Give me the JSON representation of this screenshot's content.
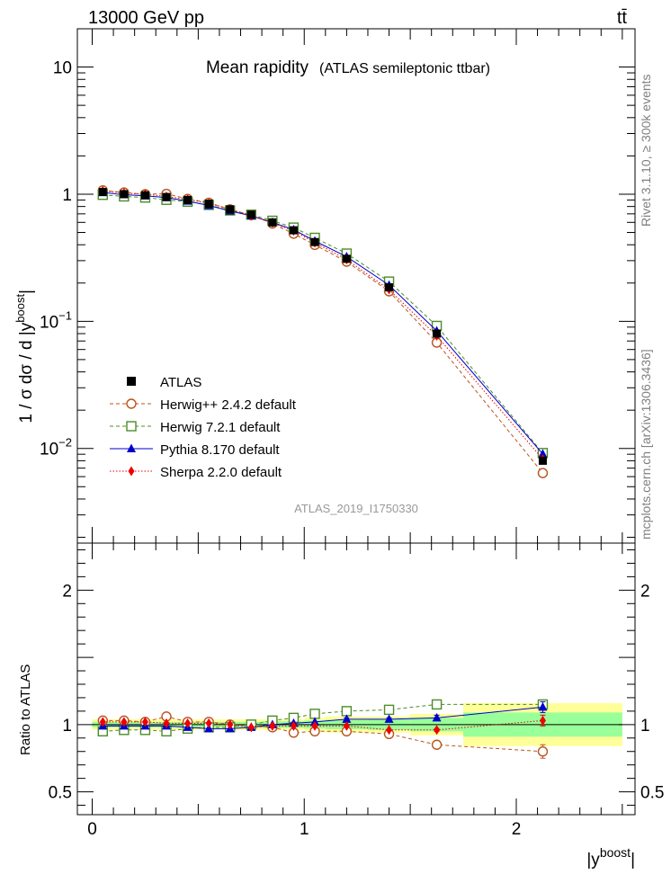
{
  "header": {
    "energy_label": "13000 GeV pp",
    "process_label": "tt̄",
    "title_main": "Mean rapidity",
    "title_sub": "(ATLAS semileptonic ttbar)",
    "analysis_id": "ATLAS_2019_I1750330",
    "side_rivet": "Rivet 3.1.10, ≥ 300k events",
    "side_mcplots": "mcplots.cern.ch [arXiv:1306.3436]"
  },
  "axes": {
    "ylabel_main": "1 / σ dσ / d |y",
    "ylabel_main_sup": "boost",
    "ylabel_main_tail": "|",
    "ylabel_ratio": "Ratio to ATLAS",
    "xlabel": "|y",
    "xlabel_sup": "boost",
    "xlabel_tail": "|",
    "main_ticks": [
      {
        "value": 10,
        "text": "10"
      },
      {
        "value": 1,
        "text": "1"
      },
      {
        "value": 0.1,
        "text": "10",
        "exp": "−1"
      },
      {
        "value": 0.01,
        "text": "10",
        "exp": "−2"
      }
    ],
    "ratio_ticks": [
      {
        "value": 2,
        "text": "2"
      },
      {
        "value": 1,
        "text": "1"
      },
      {
        "value": 0.5,
        "text": "0.5"
      }
    ],
    "x_ticks": [
      {
        "value": 0,
        "text": "0"
      },
      {
        "value": 1,
        "text": "1"
      },
      {
        "value": 2,
        "text": "2"
      }
    ]
  },
  "legend": [
    {
      "key": "atlas",
      "label": "ATLAS"
    },
    {
      "key": "herwigpp",
      "label": "Herwig++ 2.4.2 default"
    },
    {
      "key": "herwig7",
      "label": "Herwig 7.2.1 default"
    },
    {
      "key": "pythia",
      "label": "Pythia 8.170 default"
    },
    {
      "key": "sherpa",
      "label": "Sherpa 2.2.0 default"
    }
  ],
  "colors": {
    "atlas": "#000000",
    "herwigpp": "#b8541d",
    "herwig7": "#4c8c28",
    "pythia": "#0000cc",
    "sherpa": "#ee0000",
    "band_outer": "#ffff99",
    "band_inner": "#99ff99"
  },
  "chart_data": {
    "type": "scatter",
    "xlim": [
      -0.07,
      2.56
    ],
    "ylim_main": [
      0.0018,
      20
    ],
    "ylim_ratio": [
      0.33,
      2.35
    ],
    "bins": [
      [
        0.0,
        0.1
      ],
      [
        0.1,
        0.2
      ],
      [
        0.2,
        0.3
      ],
      [
        0.3,
        0.4
      ],
      [
        0.4,
        0.5
      ],
      [
        0.5,
        0.6
      ],
      [
        0.6,
        0.7
      ],
      [
        0.7,
        0.8
      ],
      [
        0.8,
        0.9
      ],
      [
        0.9,
        1.0
      ],
      [
        1.0,
        1.1
      ],
      [
        1.1,
        1.3
      ],
      [
        1.3,
        1.5
      ],
      [
        1.5,
        1.75
      ],
      [
        1.75,
        2.5
      ]
    ],
    "x": [
      0.05,
      0.15,
      0.25,
      0.35,
      0.45,
      0.55,
      0.65,
      0.75,
      0.85,
      0.95,
      1.05,
      1.2,
      1.4,
      1.625,
      2.125
    ],
    "atlas": [
      1.04,
      1.0,
      0.98,
      0.95,
      0.9,
      0.84,
      0.76,
      0.69,
      0.6,
      0.52,
      0.42,
      0.31,
      0.185,
      0.08,
      0.008
    ],
    "band_outer": [
      0.04,
      0.04,
      0.04,
      0.04,
      0.04,
      0.04,
      0.04,
      0.04,
      0.04,
      0.04,
      0.05,
      0.06,
      0.06,
      0.08,
      0.16
    ],
    "band_inner": [
      0.02,
      0.02,
      0.02,
      0.02,
      0.02,
      0.02,
      0.02,
      0.02,
      0.025,
      0.025,
      0.03,
      0.035,
      0.04,
      0.05,
      0.09
    ],
    "series": [
      {
        "key": "herwigpp",
        "name": "Herwig++ 2.4.2 default",
        "marker": "open-circle",
        "line": "dashed",
        "ratio": [
          1.03,
          1.03,
          1.02,
          1.06,
          1.02,
          1.02,
          1.0,
          0.99,
          0.98,
          0.94,
          0.95,
          0.95,
          0.93,
          0.85,
          0.8
        ],
        "ratio_err": [
          0,
          0,
          0,
          0,
          0,
          0,
          0,
          0,
          0,
          0,
          0,
          0,
          0,
          0.02,
          0.05
        ]
      },
      {
        "key": "herwig7",
        "name": "Herwig 7.2.1 default",
        "marker": "open-square",
        "line": "dashed",
        "ratio": [
          0.95,
          0.96,
          0.96,
          0.95,
          0.97,
          0.98,
          0.98,
          1.0,
          1.03,
          1.05,
          1.08,
          1.1,
          1.11,
          1.15,
          1.15
        ],
        "ratio_err": [
          0,
          0,
          0,
          0,
          0,
          0,
          0,
          0,
          0,
          0,
          0,
          0,
          0,
          0.01,
          0.03
        ]
      },
      {
        "key": "pythia",
        "name": "Pythia 8.170 default",
        "marker": "filled-triangle",
        "line": "solid",
        "ratio": [
          0.99,
          0.99,
          0.99,
          0.99,
          0.98,
          0.97,
          0.97,
          0.98,
          1.0,
          1.01,
          1.02,
          1.04,
          1.04,
          1.05,
          1.13
        ],
        "ratio_err": [
          0,
          0,
          0,
          0,
          0,
          0,
          0,
          0,
          0,
          0,
          0,
          0.01,
          0.01,
          0.02,
          0.04
        ]
      },
      {
        "key": "sherpa",
        "name": "Sherpa 2.2.0 default",
        "marker": "filled-diamond",
        "line": "dotted",
        "ratio": [
          1.02,
          1.02,
          1.02,
          1.01,
          1.01,
          1.01,
          1.0,
          0.98,
          0.99,
          0.99,
          0.99,
          0.99,
          0.96,
          0.96,
          1.03
        ],
        "ratio_err": [
          0,
          0,
          0,
          0,
          0,
          0,
          0,
          0,
          0,
          0,
          0,
          0,
          0,
          0.01,
          0.04
        ]
      }
    ]
  }
}
